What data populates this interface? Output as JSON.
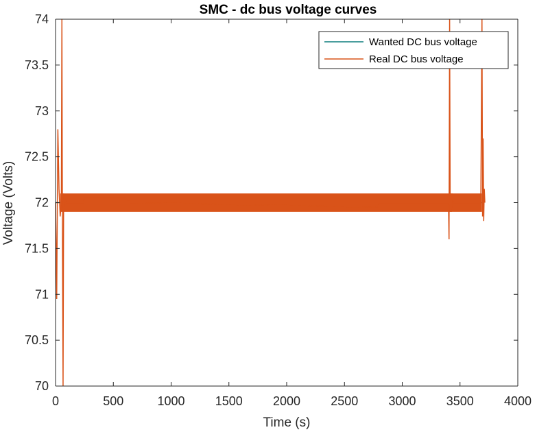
{
  "chart_data": {
    "type": "line",
    "title": "SMC - dc bus voltage curves",
    "xlabel": "Time (s)",
    "ylabel": "Voltage (Volts)",
    "xlim": [
      0,
      4000
    ],
    "ylim": [
      70,
      74
    ],
    "x_ticks": [
      "0",
      "500",
      "1000",
      "1500",
      "2000",
      "2500",
      "3000",
      "3500",
      "4000"
    ],
    "y_ticks": [
      "70",
      "70.5",
      "71",
      "71.5",
      "72",
      "72.5",
      "73",
      "73.5",
      "74"
    ],
    "grid": false,
    "legend_position": "top-right",
    "series": [
      {
        "name": "Wanted DC bus voltage",
        "color": "#0f7f7f",
        "x": [
          0,
          3700
        ],
        "y": [
          72,
          72
        ]
      },
      {
        "name": "Real DC bus voltage",
        "color": "#d95319",
        "x": [
          0,
          10,
          20,
          30,
          40,
          50,
          55,
          60,
          65,
          70,
          75,
          80,
          90,
          100,
          240,
          250,
          600,
          650,
          700,
          2790,
          2800,
          3400,
          3405,
          3410,
          3415,
          3420,
          3425,
          3430,
          3440,
          3560,
          3570,
          3680,
          3690,
          3695,
          3700,
          3705,
          3710,
          3715
        ],
        "y": [
          72.0,
          70.95,
          72.8,
          72.15,
          71.85,
          72.0,
          74.0,
          71.5,
          70.0,
          72.1,
          71.95,
          72.05,
          72.0,
          72.0,
          72.0,
          72.05,
          72.05,
          72.0,
          72.0,
          71.95,
          72.0,
          72.0,
          71.6,
          74.0,
          71.9,
          72.1,
          71.9,
          72.1,
          72.0,
          72.0,
          72.0,
          72.0,
          74.0,
          71.85,
          72.7,
          71.8,
          72.15,
          72.0
        ],
        "band": {
          "from": 40,
          "to": 3690,
          "low": 71.9,
          "high": 72.1
        }
      }
    ]
  }
}
